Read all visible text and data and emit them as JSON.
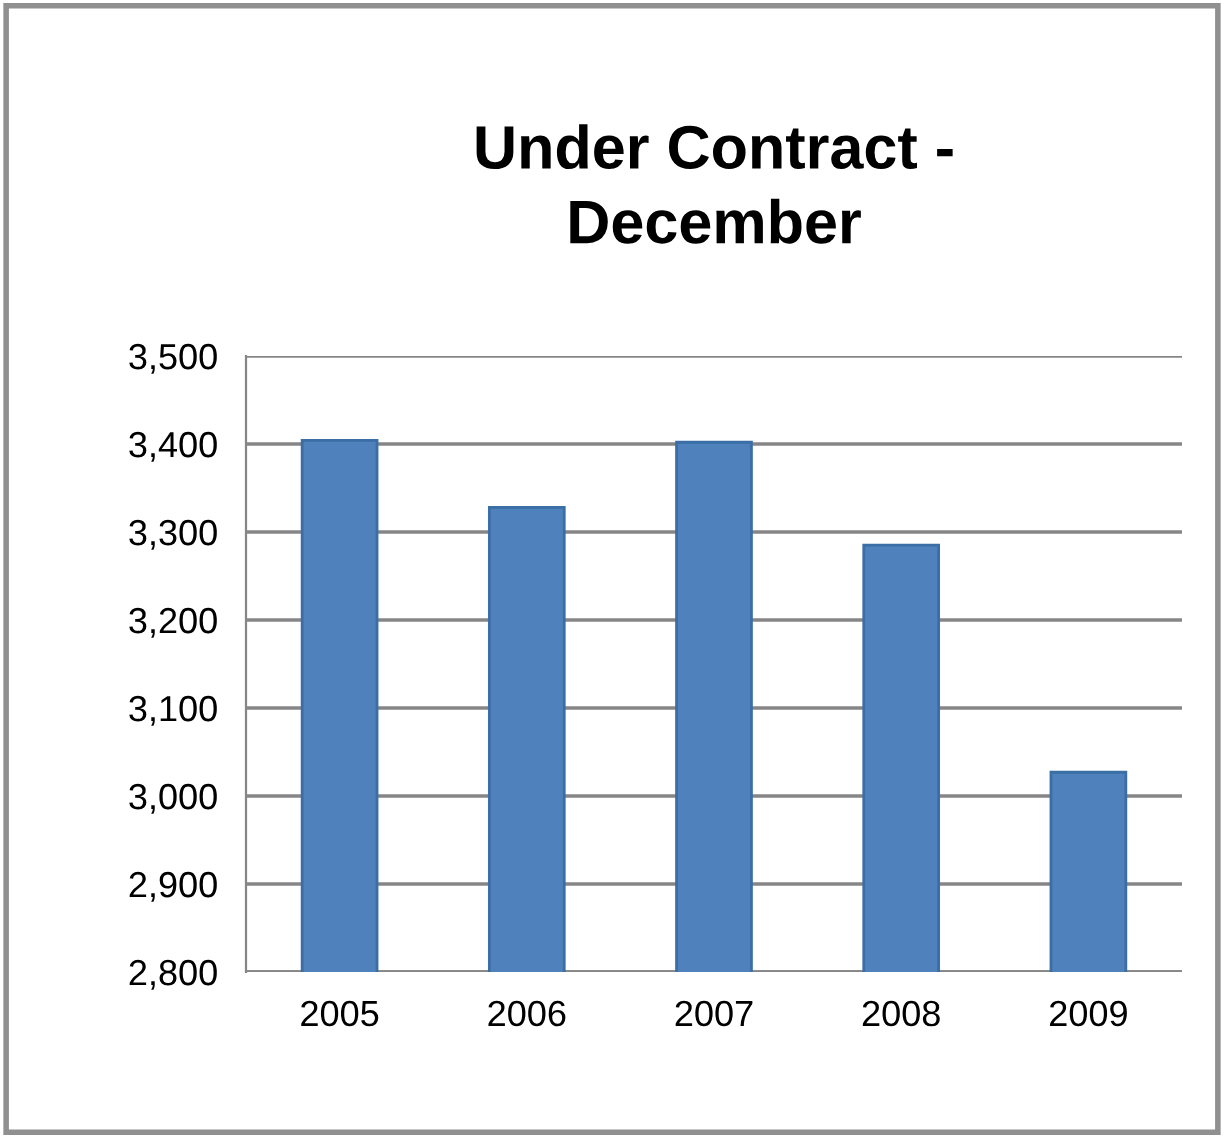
{
  "chart_data": {
    "type": "bar",
    "title": "Under Contract -\nDecember",
    "categories": [
      "2005",
      "2006",
      "2007",
      "2008",
      "2009"
    ],
    "values": [
      3404,
      3328,
      3402,
      3285,
      3027
    ],
    "color": "#4f81bd",
    "ylim": [
      2800,
      3500
    ],
    "yticks": [
      {
        "value": 2800,
        "label": "2,800"
      },
      {
        "value": 2900,
        "label": "2,900"
      },
      {
        "value": 3000,
        "label": "3,000"
      },
      {
        "value": 3100,
        "label": "3,100"
      },
      {
        "value": 3200,
        "label": "3,200"
      },
      {
        "value": 3300,
        "label": "3,300"
      },
      {
        "value": 3400,
        "label": "3,400"
      },
      {
        "value": 3500,
        "label": "3,500"
      }
    ],
    "grid": "y"
  }
}
